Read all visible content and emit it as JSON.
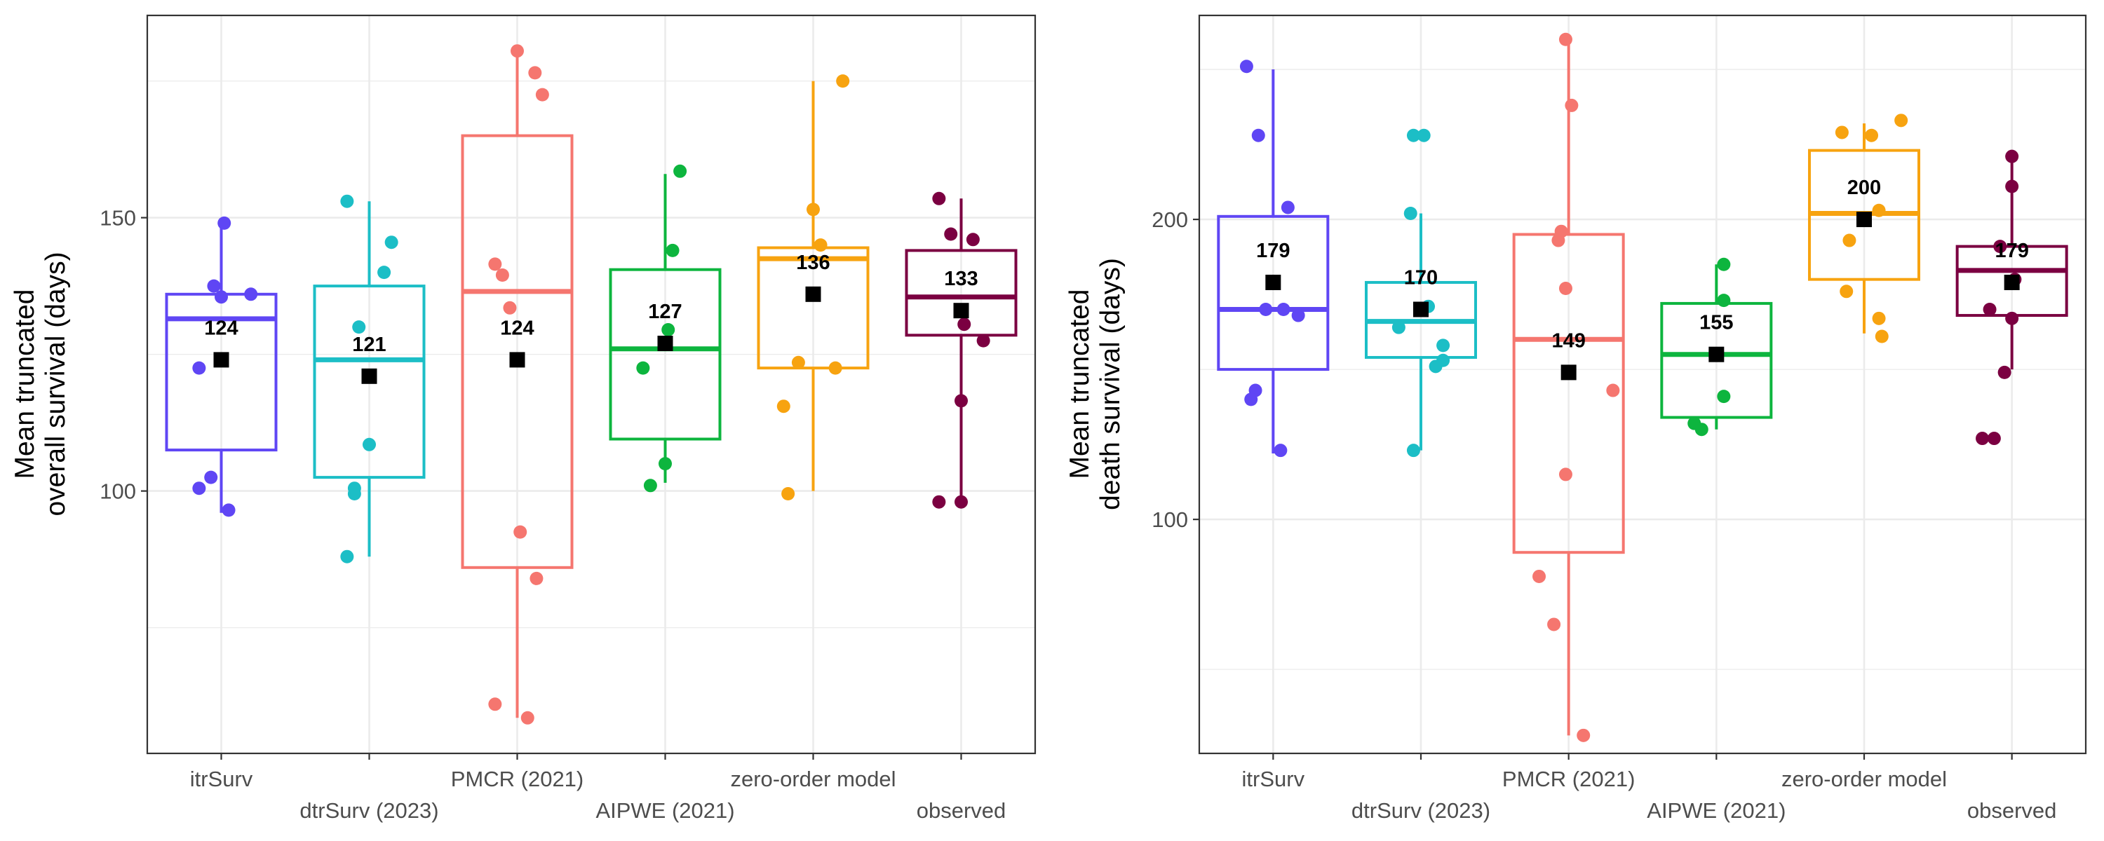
{
  "colors": {
    "itrSurv": "#5f46f4",
    "dtrSurv (2023)": "#1cbec6",
    "PMCR (2021)": "#f5766f",
    "AIPWE (2021)": "#0db53e",
    "zero-order model": "#f7a310",
    "observed": "#7b0041",
    "mean_marker": "#000000",
    "grid": "#ebebeb",
    "panel_border": "#333333"
  },
  "chart_data": [
    {
      "type": "box",
      "ylabel_lines": [
        "Mean truncated",
        "overall survival (days)"
      ],
      "xlabel": "",
      "categories": [
        "itrSurv",
        "dtrSurv (2023)",
        "PMCR (2021)",
        "AIPWE (2021)",
        "zero-order model",
        "observed"
      ],
      "ylim": [
        52,
        187
      ],
      "yticks": [
        100,
        150
      ],
      "grid": true,
      "legend": "none",
      "boxes": [
        {
          "name": "itrSurv",
          "q1": 107.5,
          "median": 131.5,
          "q3": 136,
          "whisker_low": 96,
          "whisker_high": 149,
          "mean": 124,
          "mean_label": "124",
          "points": [
            [
              -0.15,
              100.5
            ],
            [
              -0.07,
              102.5
            ],
            [
              0.05,
              96.5
            ],
            [
              -0.05,
              137.5
            ],
            [
              0,
              135.5
            ],
            [
              0.2,
              136
            ],
            [
              -0.15,
              122.5
            ],
            [
              0.02,
              149
            ]
          ]
        },
        {
          "name": "dtrSurv (2023)",
          "q1": 102.5,
          "median": 124,
          "q3": 137.5,
          "whisker_low": 88,
          "whisker_high": 153,
          "mean": 121,
          "mean_label": "121",
          "points": [
            [
              -0.15,
              153
            ],
            [
              0.15,
              145.5
            ],
            [
              0.1,
              140
            ],
            [
              -0.07,
              130
            ],
            [
              -0.1,
              100.5
            ],
            [
              -0.1,
              99.5
            ],
            [
              -0.15,
              88
            ],
            [
              0,
              108.5
            ]
          ]
        },
        {
          "name": "PMCR (2021)",
          "q1": 86,
          "median": 136.5,
          "q3": 165,
          "whisker_low": 58.5,
          "whisker_high": 180.5,
          "mean": 124,
          "mean_label": "124",
          "points": [
            [
              0,
              180.5
            ],
            [
              0.12,
              176.5
            ],
            [
              0.17,
              172.5
            ],
            [
              -0.15,
              141.5
            ],
            [
              -0.1,
              139.5
            ],
            [
              -0.05,
              133.5
            ],
            [
              0.02,
              92.5
            ],
            [
              0.13,
              84
            ],
            [
              -0.15,
              61
            ],
            [
              0.07,
              58.5
            ]
          ]
        },
        {
          "name": "AIPWE (2021)",
          "q1": 109.5,
          "median": 126,
          "q3": 140.5,
          "whisker_low": 101.5,
          "whisker_high": 158,
          "mean": 127,
          "mean_label": "127",
          "points": [
            [
              0.1,
              158.5
            ],
            [
              0.05,
              144
            ],
            [
              0.02,
              129.5
            ],
            [
              -0.15,
              122.5
            ],
            [
              0,
              105
            ],
            [
              -0.1,
              101
            ]
          ]
        },
        {
          "name": "zero-order model",
          "q1": 122.5,
          "median": 142.5,
          "q3": 144.5,
          "whisker_low": 100,
          "whisker_high": 175,
          "mean": 136,
          "mean_label": "136",
          "points": [
            [
              0.2,
              175
            ],
            [
              0,
              151.5
            ],
            [
              0.05,
              145
            ],
            [
              -0.1,
              123.5
            ],
            [
              0.15,
              122.5
            ],
            [
              -0.2,
              115.5
            ],
            [
              -0.17,
              99.5
            ]
          ]
        },
        {
          "name": "observed",
          "q1": 128.5,
          "median": 135.5,
          "q3": 144,
          "whisker_low": 98,
          "whisker_high": 153.5,
          "mean": 133,
          "mean_label": "133",
          "points": [
            [
              -0.15,
              153.5
            ],
            [
              -0.07,
              147
            ],
            [
              0.08,
              146
            ],
            [
              0.02,
              130.5
            ],
            [
              0.15,
              127.5
            ],
            [
              0,
              116.5
            ],
            [
              -0.15,
              98
            ],
            [
              0,
              98
            ]
          ]
        }
      ]
    },
    {
      "type": "box",
      "ylabel_lines": [
        "Mean truncated",
        "death survival (days)"
      ],
      "xlabel": "",
      "categories": [
        "itrSurv",
        "dtrSurv (2023)",
        "PMCR (2021)",
        "AIPWE (2021)",
        "zero-order model",
        "observed"
      ],
      "ylim": [
        22,
        268
      ],
      "yticks": [
        100,
        200
      ],
      "grid": true,
      "legend": "none",
      "boxes": [
        {
          "name": "itrSurv",
          "q1": 150,
          "median": 170,
          "q3": 201,
          "whisker_low": 122,
          "whisker_high": 250,
          "mean": 179,
          "mean_label": "179",
          "points": [
            [
              -0.18,
              251
            ],
            [
              -0.1,
              228
            ],
            [
              0.1,
              204
            ],
            [
              -0.05,
              170
            ],
            [
              0.07,
              170
            ],
            [
              0.17,
              168
            ],
            [
              -0.12,
              143
            ],
            [
              -0.15,
              140
            ],
            [
              0.05,
              123
            ]
          ]
        },
        {
          "name": "dtrSurv (2023)",
          "q1": 154,
          "median": 166,
          "q3": 179,
          "whisker_low": 123,
          "whisker_high": 202,
          "mean": 170,
          "mean_label": "170",
          "points": [
            [
              -0.05,
              228
            ],
            [
              0.02,
              228
            ],
            [
              -0.07,
              202
            ],
            [
              0.05,
              171
            ],
            [
              -0.15,
              164
            ],
            [
              0.15,
              158
            ],
            [
              0.15,
              153
            ],
            [
              0.1,
              151
            ],
            [
              -0.05,
              123
            ]
          ]
        },
        {
          "name": "PMCR (2021)",
          "q1": 89,
          "median": 160,
          "q3": 195,
          "whisker_low": 28,
          "whisker_high": 260,
          "mean": 149,
          "mean_label": "149",
          "points": [
            [
              -0.02,
              260
            ],
            [
              0.02,
              238
            ],
            [
              -0.05,
              196
            ],
            [
              -0.07,
              193
            ],
            [
              -0.02,
              177
            ],
            [
              0.3,
              143
            ],
            [
              -0.02,
              115
            ],
            [
              -0.2,
              81
            ],
            [
              -0.1,
              65
            ],
            [
              0.1,
              28
            ]
          ]
        },
        {
          "name": "AIPWE (2021)",
          "q1": 134,
          "median": 155,
          "q3": 172,
          "whisker_low": 130,
          "whisker_high": 185,
          "mean": 155,
          "mean_label": "155",
          "points": [
            [
              0.05,
              185
            ],
            [
              0.05,
              173
            ],
            [
              -0.15,
              132
            ],
            [
              -0.1,
              130
            ],
            [
              0.05,
              141
            ]
          ]
        },
        {
          "name": "zero-order model",
          "q1": 180,
          "median": 202,
          "q3": 223,
          "whisker_low": 162,
          "whisker_high": 232,
          "mean": 200,
          "mean_label": "200",
          "points": [
            [
              -0.15,
              229
            ],
            [
              0.05,
              228
            ],
            [
              0.25,
              233
            ],
            [
              -0.1,
              193
            ],
            [
              0.1,
              203
            ],
            [
              -0.12,
              176
            ],
            [
              0.1,
              167
            ],
            [
              0.12,
              161
            ]
          ]
        },
        {
          "name": "observed",
          "q1": 168,
          "median": 183,
          "q3": 191,
          "whisker_low": 150,
          "whisker_high": 221,
          "mean": 179,
          "mean_label": "179",
          "points": [
            [
              0,
              221
            ],
            [
              0,
              211
            ],
            [
              -0.08,
              191
            ],
            [
              -0.15,
              170
            ],
            [
              0.02,
              180
            ],
            [
              0,
              167
            ],
            [
              -0.05,
              149
            ],
            [
              -0.2,
              127
            ],
            [
              -0.12,
              127
            ]
          ]
        }
      ]
    }
  ]
}
